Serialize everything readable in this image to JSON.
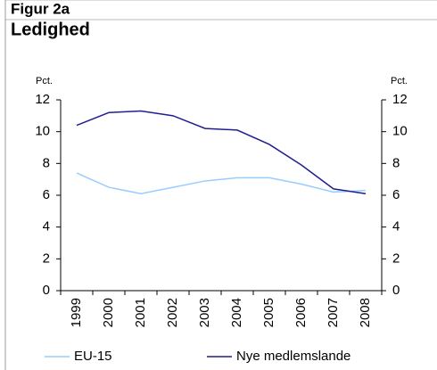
{
  "chart_data": {
    "type": "line",
    "title": "Figur 2a",
    "subtitle": "Ledighed",
    "y_label": "Pct.",
    "y2_label": "Pct.",
    "categories": [
      "1999",
      "2000",
      "2001",
      "2002",
      "2003",
      "2004",
      "2005",
      "2006",
      "2007",
      "2008"
    ],
    "series": [
      {
        "name": "EU-15",
        "color": "#99ccff",
        "values": [
          7.4,
          6.5,
          6.1,
          6.5,
          6.9,
          7.1,
          7.1,
          6.7,
          6.2,
          6.3
        ]
      },
      {
        "name": "Nye medlemslande",
        "color": "#1f1f8f",
        "values": [
          10.4,
          11.2,
          11.3,
          11.0,
          10.2,
          10.1,
          9.2,
          7.9,
          6.4,
          6.1
        ]
      }
    ],
    "ylim": [
      0,
      12
    ],
    "yticks": [
      0,
      2,
      4,
      6,
      8,
      10,
      12
    ],
    "y2lim": [
      0,
      12
    ],
    "y2ticks": [
      0,
      2,
      4,
      6,
      8,
      10,
      12
    ]
  }
}
